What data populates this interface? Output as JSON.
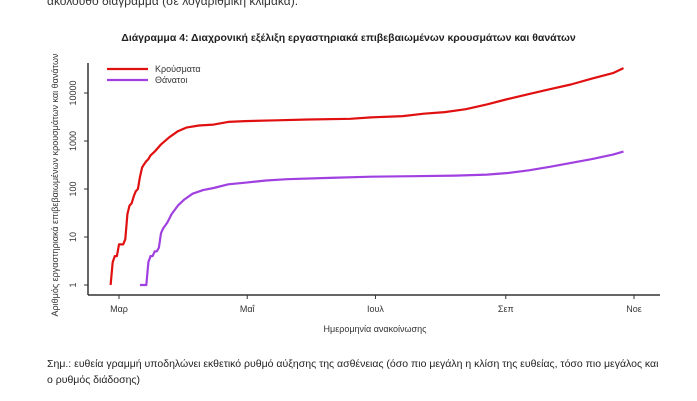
{
  "intro_text": "ακόλουθο διάγραμμα (σε λογαριθμική κλίμακα).",
  "note": "Σημ.: ευθεία γραμμή υποδηλώνει εκθετικό ρυθμό αύξησης της ασθένειας (όσο πιο μεγάλη η κλίση της ευθείας, τόσο πιο μεγάλος και ο ρυθμός διάδοσης)",
  "chart_data": {
    "type": "line",
    "title": "Διάγραμμα 4: Διαχρονική εξέλιξη εργαστηριακά επιβεβαιωμένων κρουσμάτων και θανάτων",
    "xlabel": "Ημερομηνία ανακοίνωσης",
    "ylabel": "Αριθμός εργαστηριακά επιβεβαιωμένων κρουσμάτων και θανάτων",
    "yscale": "log",
    "ylim": [
      0.8,
      40000
    ],
    "yticks": [
      {
        "v": 1,
        "label": "1"
      },
      {
        "v": 10,
        "label": "10"
      },
      {
        "v": 100,
        "label": "100"
      },
      {
        "v": 1000,
        "label": "1000"
      },
      {
        "v": 10000,
        "label": "10000"
      }
    ],
    "xunit": "days since 1 March",
    "xlim": [
      -5,
      250
    ],
    "xticks": [
      {
        "v": 0,
        "label": "Μαρ"
      },
      {
        "v": 61,
        "label": "Μαΐ"
      },
      {
        "v": 122,
        "label": "Ιουλ"
      },
      {
        "v": 184,
        "label": "Σεπ"
      },
      {
        "v": 245,
        "label": "Νοε"
      }
    ],
    "legend_position": "top-left",
    "series": [
      {
        "name": "Κρούσματα",
        "color": "#e01010",
        "x": [
          -4,
          -3,
          -2,
          -1,
          0,
          1,
          2,
          3,
          4,
          5,
          6,
          7,
          8,
          9,
          10,
          11,
          12,
          13,
          14,
          15,
          17,
          20,
          24,
          28,
          32,
          38,
          45,
          52,
          60,
          75,
          90,
          110,
          120,
          135,
          145,
          155,
          165,
          175,
          185,
          195,
          205,
          215,
          225,
          235,
          240
        ],
        "y": [
          1,
          3,
          4,
          4,
          7,
          7,
          7,
          9,
          30,
          45,
          50,
          70,
          90,
          100,
          180,
          280,
          330,
          380,
          420,
          500,
          600,
          850,
          1200,
          1600,
          1900,
          2100,
          2200,
          2500,
          2600,
          2700,
          2800,
          2900,
          3100,
          3300,
          3700,
          4000,
          4600,
          5800,
          7500,
          9500,
          12000,
          15000,
          20000,
          26000,
          33000
        ]
      },
      {
        "name": "Θάνατοι",
        "color": "#a040e0",
        "x": [
          10,
          13,
          14,
          15,
          16,
          17,
          18,
          19,
          20,
          21,
          23,
          25,
          28,
          31,
          35,
          40,
          45,
          52,
          60,
          70,
          80,
          100,
          120,
          140,
          160,
          175,
          185,
          195,
          205,
          215,
          225,
          235,
          240
        ],
        "y": [
          1,
          1,
          3,
          4,
          4,
          5,
          5,
          6,
          12,
          15,
          20,
          30,
          45,
          60,
          80,
          95,
          105,
          125,
          135,
          150,
          160,
          170,
          180,
          185,
          190,
          200,
          215,
          245,
          290,
          350,
          420,
          520,
          600
        ]
      }
    ]
  }
}
